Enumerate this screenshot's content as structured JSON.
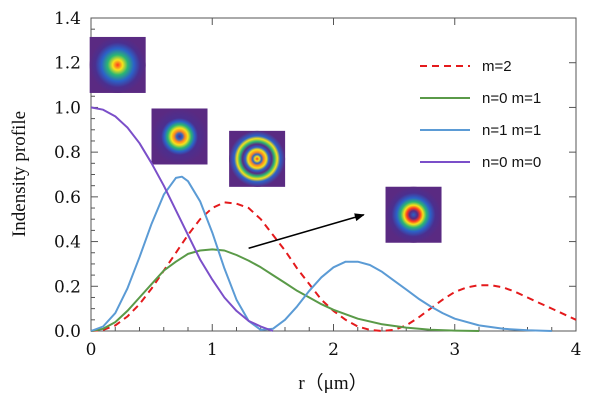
{
  "chart_data": {
    "type": "line",
    "xlabel": "r（μm）",
    "ylabel": "Indensity profile",
    "xlim": [
      0,
      4
    ],
    "ylim": [
      0,
      1.4
    ],
    "xticks": [
      "0",
      "1",
      "2",
      "3",
      "4"
    ],
    "yticks": [
      "0.0",
      "0.2",
      "0.4",
      "0.6",
      "0.8",
      "1.0",
      "1.2",
      "1.4"
    ],
    "grid": false,
    "legend_position": "top-right",
    "series": [
      {
        "name": "m=2",
        "color": "#e41a1c",
        "style": "dashed",
        "points": [
          [
            0,
            0
          ],
          [
            0.1,
            0.005
          ],
          [
            0.2,
            0.025
          ],
          [
            0.3,
            0.065
          ],
          [
            0.4,
            0.12
          ],
          [
            0.5,
            0.19
          ],
          [
            0.6,
            0.27
          ],
          [
            0.7,
            0.35
          ],
          [
            0.8,
            0.43
          ],
          [
            0.9,
            0.5
          ],
          [
            1.0,
            0.55
          ],
          [
            1.1,
            0.575
          ],
          [
            1.2,
            0.57
          ],
          [
            1.3,
            0.55
          ],
          [
            1.4,
            0.5
          ],
          [
            1.5,
            0.43
          ],
          [
            1.6,
            0.36
          ],
          [
            1.7,
            0.28
          ],
          [
            1.8,
            0.21
          ],
          [
            1.9,
            0.14
          ],
          [
            2.0,
            0.09
          ],
          [
            2.1,
            0.05
          ],
          [
            2.2,
            0.02
          ],
          [
            2.3,
            0.005
          ],
          [
            2.4,
            0.0
          ],
          [
            2.5,
            0.005
          ],
          [
            2.6,
            0.025
          ],
          [
            2.7,
            0.06
          ],
          [
            2.8,
            0.1
          ],
          [
            2.9,
            0.14
          ],
          [
            3.0,
            0.175
          ],
          [
            3.1,
            0.195
          ],
          [
            3.2,
            0.205
          ],
          [
            3.3,
            0.205
          ],
          [
            3.4,
            0.195
          ],
          [
            3.5,
            0.175
          ],
          [
            3.6,
            0.15
          ],
          [
            3.7,
            0.125
          ],
          [
            3.8,
            0.1
          ],
          [
            3.9,
            0.075
          ],
          [
            4.0,
            0.05
          ]
        ]
      },
      {
        "name": "n=0 m=1",
        "color": "#5a9a48",
        "style": "solid",
        "points": [
          [
            0,
            0
          ],
          [
            0.1,
            0.01
          ],
          [
            0.2,
            0.04
          ],
          [
            0.3,
            0.09
          ],
          [
            0.4,
            0.15
          ],
          [
            0.5,
            0.21
          ],
          [
            0.6,
            0.27
          ],
          [
            0.7,
            0.31
          ],
          [
            0.8,
            0.345
          ],
          [
            0.9,
            0.36
          ],
          [
            1.0,
            0.365
          ],
          [
            1.1,
            0.36
          ],
          [
            1.2,
            0.34
          ],
          [
            1.3,
            0.315
          ],
          [
            1.4,
            0.285
          ],
          [
            1.5,
            0.25
          ],
          [
            1.6,
            0.215
          ],
          [
            1.7,
            0.18
          ],
          [
            1.8,
            0.15
          ],
          [
            1.9,
            0.12
          ],
          [
            2.0,
            0.095
          ],
          [
            2.2,
            0.055
          ],
          [
            2.4,
            0.03
          ],
          [
            2.6,
            0.015
          ],
          [
            2.8,
            0.006
          ],
          [
            3.0,
            0.002
          ],
          [
            3.2,
            0.0
          ]
        ]
      },
      {
        "name": "n=1 m=1",
        "color": "#5b9bd5",
        "style": "solid",
        "points": [
          [
            0,
            0
          ],
          [
            0.1,
            0.02
          ],
          [
            0.2,
            0.08
          ],
          [
            0.3,
            0.19
          ],
          [
            0.4,
            0.33
          ],
          [
            0.5,
            0.48
          ],
          [
            0.6,
            0.61
          ],
          [
            0.7,
            0.685
          ],
          [
            0.75,
            0.69
          ],
          [
            0.8,
            0.67
          ],
          [
            0.9,
            0.58
          ],
          [
            1.0,
            0.44
          ],
          [
            1.1,
            0.28
          ],
          [
            1.2,
            0.14
          ],
          [
            1.3,
            0.045
          ],
          [
            1.4,
            0.005
          ],
          [
            1.5,
            0.01
          ],
          [
            1.6,
            0.05
          ],
          [
            1.7,
            0.11
          ],
          [
            1.8,
            0.18
          ],
          [
            1.9,
            0.24
          ],
          [
            2.0,
            0.285
          ],
          [
            2.1,
            0.31
          ],
          [
            2.2,
            0.31
          ],
          [
            2.3,
            0.295
          ],
          [
            2.4,
            0.265
          ],
          [
            2.5,
            0.225
          ],
          [
            2.6,
            0.185
          ],
          [
            2.7,
            0.145
          ],
          [
            2.8,
            0.11
          ],
          [
            2.9,
            0.08
          ],
          [
            3.0,
            0.055
          ],
          [
            3.2,
            0.025
          ],
          [
            3.4,
            0.01
          ],
          [
            3.6,
            0.003
          ],
          [
            3.8,
            0.0
          ]
        ]
      },
      {
        "name": "n=0 m=0",
        "color": "#7b4fc9",
        "style": "solid",
        "points": [
          [
            0,
            1.0
          ],
          [
            0.1,
            0.99
          ],
          [
            0.2,
            0.96
          ],
          [
            0.3,
            0.91
          ],
          [
            0.4,
            0.84
          ],
          [
            0.5,
            0.75
          ],
          [
            0.6,
            0.65
          ],
          [
            0.7,
            0.54
          ],
          [
            0.8,
            0.43
          ],
          [
            0.9,
            0.32
          ],
          [
            1.0,
            0.23
          ],
          [
            1.1,
            0.15
          ],
          [
            1.2,
            0.09
          ],
          [
            1.3,
            0.045
          ],
          [
            1.4,
            0.02
          ],
          [
            1.5,
            0.0
          ]
        ]
      }
    ],
    "annotation": {
      "type": "arrow",
      "from": [
        1.3,
        0.37
      ],
      "to": [
        2.25,
        0.52
      ],
      "color": "#000000"
    },
    "insets": [
      {
        "name": "mode-inset-1",
        "x": 0.22,
        "y": 1.19,
        "rings": 1
      },
      {
        "name": "mode-inset-2",
        "x": 0.73,
        "y": 0.87,
        "rings": 2
      },
      {
        "name": "mode-inset-3",
        "x": 1.37,
        "y": 0.77,
        "rings": 3
      },
      {
        "name": "mode-inset-4",
        "x": 2.66,
        "y": 0.52,
        "rings": 2
      }
    ]
  }
}
